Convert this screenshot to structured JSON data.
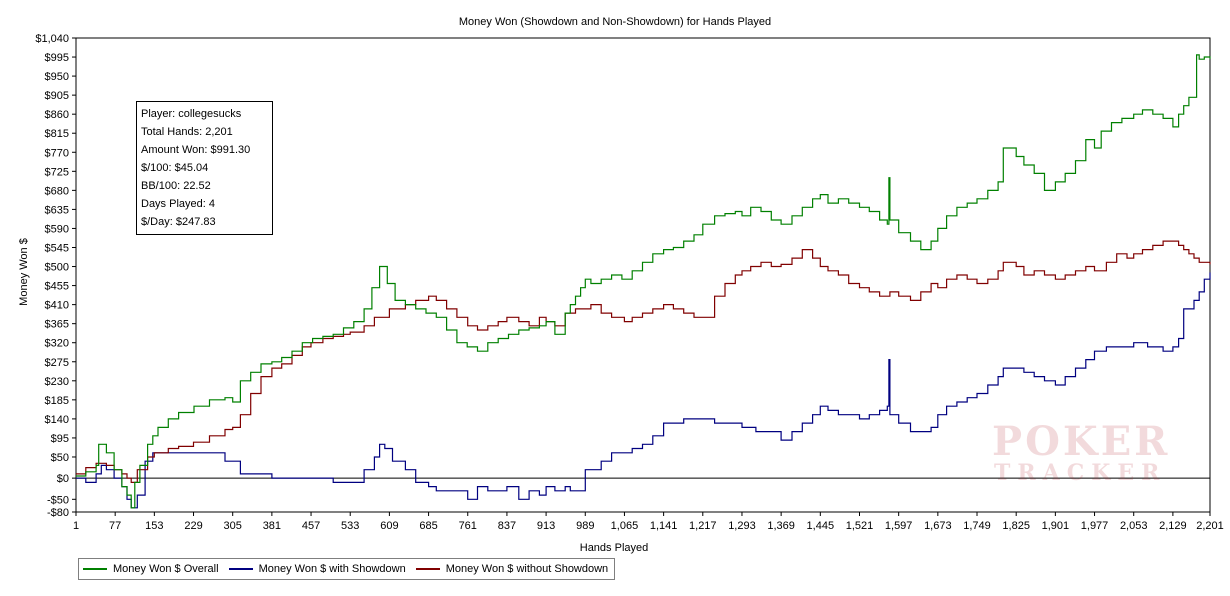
{
  "chart_data": {
    "type": "line",
    "title": "Money Won (Showdown and Non-Showdown) for Hands Played",
    "xlabel": "Hands Played",
    "ylabel": "Money Won $",
    "xlim": [
      1,
      2201
    ],
    "ylim": [
      -80,
      1040
    ],
    "x_ticks": [
      1,
      77,
      153,
      229,
      305,
      381,
      457,
      533,
      609,
      685,
      761,
      837,
      913,
      989,
      1065,
      1141,
      1217,
      1293,
      1369,
      1445,
      1521,
      1597,
      1673,
      1749,
      1825,
      1901,
      1977,
      2053,
      2129,
      2201
    ],
    "x_tick_labels": [
      "1",
      "77",
      "153",
      "229",
      "305",
      "381",
      "457",
      "533",
      "609",
      "685",
      "761",
      "837",
      "913",
      "989",
      "1,065",
      "1,141",
      "1,217",
      "1,293",
      "1,369",
      "1,445",
      "1,521",
      "1,597",
      "1,673",
      "1,749",
      "1,825",
      "1,901",
      "1,977",
      "2,053",
      "2,129",
      "2,201"
    ],
    "y_ticks": [
      -80,
      -50,
      0,
      50,
      95,
      140,
      185,
      230,
      275,
      320,
      365,
      410,
      455,
      500,
      545,
      590,
      635,
      680,
      725,
      770,
      815,
      860,
      905,
      950,
      995,
      1040
    ],
    "y_tick_labels": [
      "-$80",
      "-$50",
      "$0",
      "$50",
      "$95",
      "$140",
      "$185",
      "$230",
      "$275",
      "$320",
      "$365",
      "$410",
      "$455",
      "$500",
      "$545",
      "$590",
      "$635",
      "$680",
      "$725",
      "$770",
      "$815",
      "$860",
      "$905",
      "$950",
      "$995",
      "$1,040"
    ],
    "grid": false,
    "legend_position": "bottom-left",
    "series": [
      {
        "name": "Money Won $ Overall",
        "color": "#008000",
        "x": [
          1,
          20,
          40,
          45,
          60,
          75,
          90,
          100,
          108,
          115,
          125,
          140,
          150,
          160,
          180,
          200,
          230,
          260,
          290,
          305,
          320,
          340,
          360,
          381,
          400,
          420,
          440,
          460,
          480,
          500,
          520,
          540,
          560,
          575,
          590,
          605,
          620,
          640,
          660,
          680,
          700,
          720,
          740,
          760,
          780,
          800,
          820,
          840,
          860,
          880,
          900,
          913,
          930,
          950,
          960,
          970,
          980,
          989,
          1000,
          1020,
          1040,
          1060,
          1080,
          1100,
          1120,
          1141,
          1160,
          1180,
          1200,
          1217,
          1240,
          1260,
          1280,
          1293,
          1310,
          1330,
          1350,
          1369,
          1390,
          1410,
          1430,
          1445,
          1460,
          1480,
          1500,
          1521,
          1540,
          1560,
          1575,
          1578,
          1580,
          1597,
          1620,
          1640,
          1660,
          1673,
          1690,
          1710,
          1730,
          1749,
          1770,
          1790,
          1800,
          1825,
          1840,
          1860,
          1880,
          1901,
          1920,
          1940,
          1960,
          1977,
          1990,
          2010,
          2030,
          2053,
          2070,
          2090,
          2110,
          2129,
          2140,
          2150,
          2160,
          2175,
          2180,
          2190,
          2201
        ],
        "values": [
          5,
          15,
          30,
          80,
          60,
          20,
          -20,
          -40,
          -70,
          -10,
          30,
          80,
          100,
          120,
          140,
          155,
          170,
          185,
          190,
          180,
          230,
          250,
          270,
          275,
          285,
          300,
          320,
          330,
          335,
          340,
          355,
          370,
          400,
          450,
          500,
          460,
          420,
          410,
          400,
          390,
          380,
          350,
          320,
          310,
          300,
          320,
          330,
          340,
          350,
          355,
          360,
          370,
          340,
          390,
          410,
          430,
          450,
          470,
          460,
          470,
          480,
          470,
          490,
          510,
          530,
          540,
          545,
          560,
          575,
          600,
          620,
          625,
          630,
          620,
          640,
          630,
          610,
          600,
          620,
          640,
          660,
          670,
          650,
          660,
          650,
          640,
          630,
          610,
          600,
          710,
          610,
          580,
          560,
          540,
          560,
          590,
          620,
          640,
          650,
          660,
          680,
          700,
          780,
          760,
          740,
          720,
          680,
          700,
          720,
          750,
          800,
          780,
          820,
          840,
          850,
          860,
          870,
          860,
          850,
          830,
          860,
          880,
          900,
          1000,
          990,
          995,
          991
        ]
      },
      {
        "name": "Money Won $ with Showdown",
        "color": "#000080",
        "x": [
          1,
          20,
          40,
          50,
          60,
          75,
          90,
          100,
          108,
          120,
          135,
          150,
          180,
          210,
          240,
          260,
          270,
          290,
          320,
          381,
          420,
          457,
          500,
          533,
          560,
          580,
          590,
          600,
          615,
          640,
          660,
          685,
          700,
          720,
          740,
          761,
          780,
          800,
          820,
          837,
          860,
          880,
          900,
          913,
          930,
          950,
          960,
          989,
          1000,
          1020,
          1040,
          1065,
          1080,
          1100,
          1120,
          1141,
          1160,
          1180,
          1200,
          1217,
          1240,
          1260,
          1293,
          1320,
          1340,
          1369,
          1390,
          1410,
          1430,
          1445,
          1460,
          1480,
          1500,
          1521,
          1540,
          1560,
          1575,
          1578,
          1580,
          1597,
          1620,
          1640,
          1660,
          1673,
          1690,
          1710,
          1730,
          1749,
          1770,
          1790,
          1800,
          1825,
          1840,
          1860,
          1880,
          1901,
          1920,
          1940,
          1960,
          1977,
          2000,
          2030,
          2053,
          2080,
          2110,
          2129,
          2140,
          2150,
          2170,
          2180,
          2190,
          2201
        ],
        "values": [
          0,
          -10,
          10,
          30,
          20,
          0,
          -20,
          -50,
          -70,
          -40,
          40,
          60,
          60,
          60,
          60,
          60,
          60,
          40,
          10,
          0,
          0,
          0,
          -10,
          -10,
          20,
          50,
          80,
          70,
          40,
          20,
          -10,
          -20,
          -30,
          -30,
          -30,
          -50,
          -20,
          -30,
          -30,
          -20,
          -50,
          -30,
          -40,
          -20,
          -30,
          -20,
          -30,
          20,
          20,
          40,
          60,
          60,
          70,
          80,
          100,
          130,
          130,
          140,
          140,
          140,
          130,
          130,
          120,
          110,
          110,
          90,
          110,
          130,
          150,
          170,
          160,
          150,
          150,
          140,
          150,
          160,
          170,
          280,
          150,
          130,
          110,
          110,
          120,
          150,
          170,
          180,
          190,
          200,
          220,
          240,
          260,
          260,
          250,
          240,
          230,
          220,
          240,
          260,
          280,
          300,
          310,
          310,
          320,
          310,
          300,
          310,
          330,
          400,
          420,
          440,
          470,
          486
        ]
      },
      {
        "name": "Money Won $ without Showdown",
        "color": "#800000",
        "x": [
          1,
          20,
          40,
          60,
          75,
          90,
          100,
          108,
          120,
          140,
          153,
          180,
          200,
          229,
          260,
          290,
          305,
          320,
          340,
          360,
          381,
          400,
          420,
          440,
          457,
          480,
          500,
          520,
          533,
          560,
          580,
          609,
          640,
          660,
          685,
          700,
          720,
          740,
          761,
          780,
          800,
          820,
          837,
          860,
          880,
          900,
          913,
          930,
          950,
          970,
          989,
          1000,
          1020,
          1040,
          1065,
          1080,
          1100,
          1120,
          1141,
          1160,
          1180,
          1200,
          1217,
          1240,
          1260,
          1280,
          1293,
          1310,
          1330,
          1350,
          1369,
          1390,
          1410,
          1430,
          1445,
          1460,
          1480,
          1500,
          1521,
          1540,
          1560,
          1580,
          1597,
          1620,
          1640,
          1660,
          1673,
          1690,
          1710,
          1730,
          1749,
          1770,
          1790,
          1800,
          1825,
          1840,
          1860,
          1880,
          1901,
          1920,
          1940,
          1960,
          1977,
          2000,
          2020,
          2040,
          2053,
          2070,
          2090,
          2110,
          2129,
          2140,
          2150,
          2160,
          2170,
          2180,
          2190,
          2201
        ],
        "values": [
          10,
          25,
          35,
          30,
          20,
          10,
          0,
          -10,
          20,
          50,
          60,
          70,
          75,
          85,
          100,
          115,
          120,
          150,
          200,
          240,
          260,
          270,
          290,
          310,
          320,
          330,
          335,
          340,
          345,
          360,
          380,
          400,
          410,
          420,
          430,
          420,
          400,
          380,
          360,
          350,
          360,
          370,
          380,
          370,
          360,
          380,
          370,
          360,
          390,
          400,
          400,
          410,
          390,
          380,
          370,
          380,
          390,
          400,
          410,
          400,
          390,
          380,
          380,
          430,
          460,
          480,
          490,
          500,
          510,
          500,
          505,
          520,
          540,
          520,
          500,
          490,
          480,
          460,
          450,
          440,
          430,
          440,
          430,
          420,
          440,
          460,
          450,
          470,
          480,
          470,
          460,
          470,
          490,
          510,
          500,
          480,
          490,
          480,
          470,
          480,
          490,
          500,
          490,
          510,
          530,
          520,
          530,
          540,
          550,
          560,
          560,
          550,
          540,
          530,
          520,
          510,
          510,
          505
        ]
      }
    ],
    "stats": {
      "player": "Player: collegesucks",
      "total_hands": "Total Hands: 2,201",
      "amount_won": "Amount Won: $991.30",
      "per100": "$/100: $45.04",
      "bb100": "BB/100: 22.52",
      "days": "Days Played: 4",
      "perday": "$/Day: $247.83"
    },
    "watermark": {
      "top": "POKER",
      "bottom": "TRACKER",
      "mark": "3"
    }
  }
}
